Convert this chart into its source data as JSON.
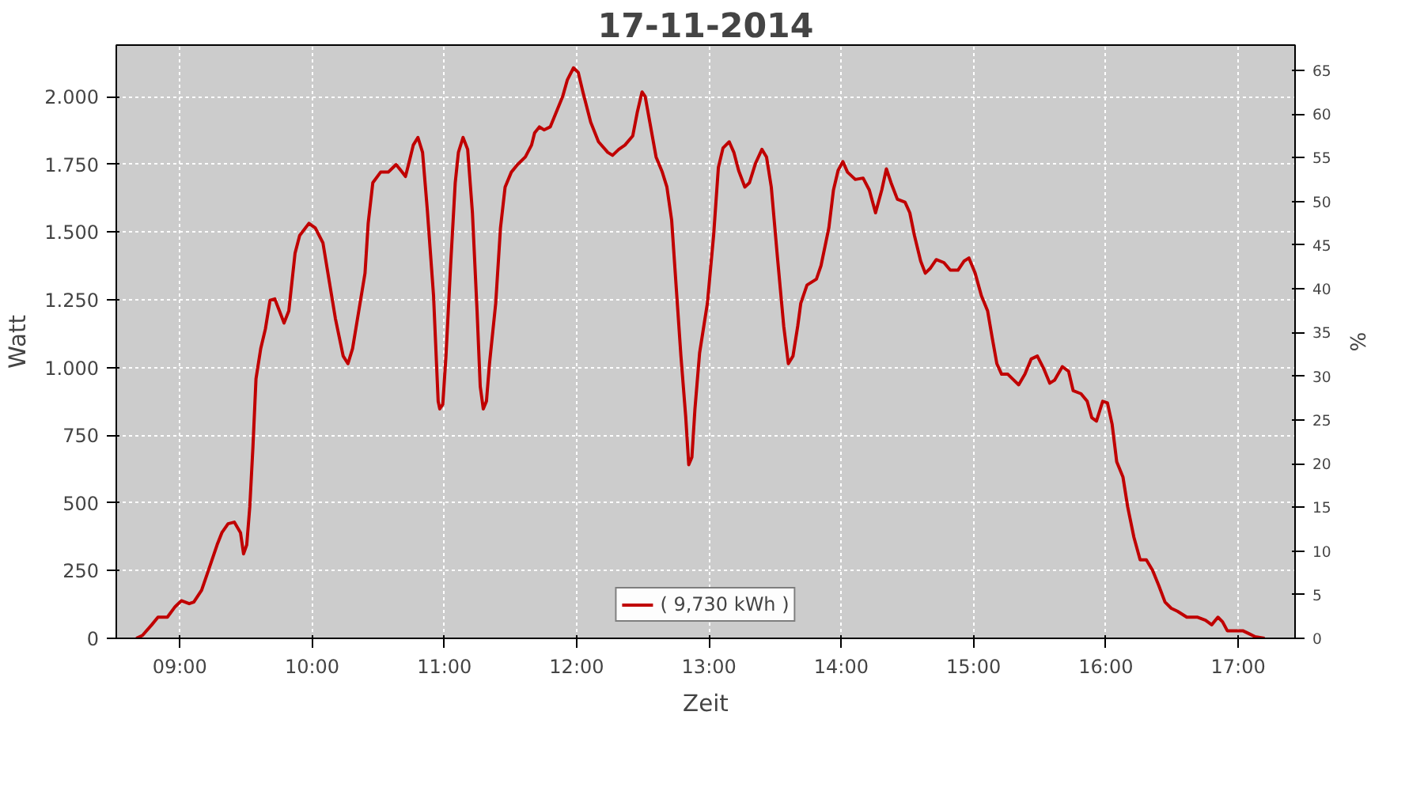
{
  "chart_data": {
    "type": "line",
    "title": "17-11-2014",
    "xlabel": "Zeit",
    "ylabel": "Watt",
    "y2label": "%",
    "xlim": [
      8.52,
      17.43
    ],
    "xticks": [
      {
        "value": 9,
        "label": "09:00"
      },
      {
        "value": 10,
        "label": "10:00"
      },
      {
        "value": 11,
        "label": "11:00"
      },
      {
        "value": 12,
        "label": "12:00"
      },
      {
        "value": 13,
        "label": "13:00"
      },
      {
        "value": 14,
        "label": "14:00"
      },
      {
        "value": 15,
        "label": "15:00"
      },
      {
        "value": 16,
        "label": "16:00"
      },
      {
        "value": 17,
        "label": "17:00"
      }
    ],
    "ylim": [
      0,
      2190
    ],
    "yticks": [
      0,
      250,
      500,
      750,
      {
        "value": 1000,
        "label": "1.000"
      },
      {
        "value": 1250,
        "label": "1.250"
      },
      {
        "value": 1500,
        "label": "1.500"
      },
      {
        "value": 1750,
        "label": "1.750"
      },
      {
        "value": 2000,
        "label": "2.000"
      }
    ],
    "y2lim": [
      0,
      67.9
    ],
    "y2ticks": [
      0,
      5,
      10,
      15,
      20,
      25,
      30,
      35,
      40,
      45,
      50,
      55,
      60,
      65
    ],
    "grid": true,
    "legend": "bottom",
    "marker": "none",
    "line_style": "solid",
    "series": [
      {
        "name": "( 9,730 kWh )",
        "color": "#c00000",
        "x": [
          8.671,
          8.718,
          8.788,
          8.835,
          8.906,
          8.965,
          9.012,
          9.071,
          9.106,
          9.165,
          9.224,
          9.282,
          9.318,
          9.365,
          9.412,
          9.459,
          9.482,
          9.506,
          9.529,
          9.553,
          9.576,
          9.612,
          9.647,
          9.682,
          9.718,
          9.753,
          9.788,
          9.824,
          9.871,
          9.906,
          9.976,
          10.024,
          10.082,
          10.129,
          10.176,
          10.235,
          10.271,
          10.306,
          10.353,
          10.4,
          10.424,
          10.459,
          10.518,
          10.576,
          10.635,
          10.671,
          10.706,
          10.729,
          10.765,
          10.8,
          10.835,
          10.871,
          10.918,
          10.953,
          10.965,
          10.988,
          11.012,
          11.047,
          11.082,
          11.106,
          11.141,
          11.176,
          11.212,
          11.247,
          11.271,
          11.294,
          11.318,
          11.341,
          11.388,
          11.424,
          11.459,
          11.506,
          11.553,
          11.612,
          11.659,
          11.682,
          11.718,
          11.753,
          11.8,
          11.847,
          11.894,
          11.929,
          11.976,
          12.012,
          12.047,
          12.106,
          12.165,
          12.235,
          12.271,
          12.318,
          12.365,
          12.424,
          12.459,
          12.494,
          12.518,
          12.553,
          12.6,
          12.647,
          12.682,
          12.718,
          12.753,
          12.788,
          12.824,
          12.847,
          12.871,
          12.894,
          12.929,
          12.988,
          13.035,
          13.071,
          13.106,
          13.153,
          13.188,
          13.224,
          13.271,
          13.306,
          13.353,
          13.4,
          13.435,
          13.471,
          13.518,
          13.565,
          13.6,
          13.635,
          13.671,
          13.694,
          13.741,
          13.812,
          13.847,
          13.906,
          13.941,
          13.976,
          14.012,
          14.047,
          14.106,
          14.165,
          14.212,
          14.259,
          14.306,
          14.341,
          14.376,
          14.424,
          14.482,
          14.518,
          14.553,
          14.6,
          14.635,
          14.671,
          14.718,
          14.776,
          14.824,
          14.882,
          14.929,
          14.965,
          15.012,
          15.059,
          15.106,
          15.141,
          15.176,
          15.212,
          15.259,
          15.294,
          15.341,
          15.388,
          15.435,
          15.482,
          15.529,
          15.576,
          15.612,
          15.671,
          15.718,
          15.753,
          15.812,
          15.859,
          15.894,
          15.929,
          15.976,
          16.012,
          16.047,
          16.082,
          16.129,
          16.165,
          16.212,
          16.259,
          16.306,
          16.353,
          16.4,
          16.447,
          16.494,
          16.541,
          16.612,
          16.694,
          16.753,
          16.8,
          16.847,
          16.882,
          16.918,
          16.988,
          17.035,
          17.082,
          17.129,
          17.2
        ],
        "values": [
          0,
          11,
          50,
          78,
          78,
          117,
          139,
          128,
          134,
          178,
          262,
          345,
          390,
          423,
          429,
          390,
          312,
          345,
          485,
          708,
          958,
          1070,
          1142,
          1248,
          1253,
          1209,
          1164,
          1209,
          1421,
          1487,
          1532,
          1515,
          1460,
          1320,
          1181,
          1042,
          1014,
          1070,
          1209,
          1348,
          1532,
          1682,
          1721,
          1721,
          1749,
          1727,
          1705,
          1749,
          1821,
          1849,
          1794,
          1582,
          1265,
          875,
          847,
          864,
          1042,
          1376,
          1682,
          1794,
          1849,
          1805,
          1571,
          1209,
          930,
          847,
          875,
          1014,
          1237,
          1515,
          1666,
          1721,
          1749,
          1777,
          1821,
          1866,
          1888,
          1877,
          1888,
          1944,
          2000,
          2061,
          2106,
          2089,
          2017,
          1905,
          1833,
          1794,
          1783,
          1805,
          1821,
          1855,
          1944,
          2017,
          2000,
          1905,
          1777,
          1721,
          1666,
          1543,
          1292,
          1042,
          819,
          641,
          669,
          847,
          1053,
          1237,
          1487,
          1738,
          1810,
          1833,
          1794,
          1727,
          1666,
          1682,
          1755,
          1805,
          1777,
          1666,
          1404,
          1153,
          1014,
          1042,
          1153,
          1237,
          1304,
          1326,
          1376,
          1515,
          1655,
          1727,
          1760,
          1721,
          1694,
          1699,
          1655,
          1571,
          1655,
          1733,
          1682,
          1621,
          1610,
          1571,
          1487,
          1393,
          1348,
          1365,
          1398,
          1387,
          1359,
          1359,
          1393,
          1404,
          1348,
          1265,
          1209,
          1109,
          1014,
          975,
          975,
          958,
          936,
          975,
          1031,
          1042,
          997,
          942,
          953,
          1003,
          986,
          914,
          903,
          875,
          814,
          802,
          875,
          869,
          791,
          652,
          596,
          485,
          373,
          290,
          290,
          251,
          195,
          134,
          111,
          100,
          78,
          78,
          67,
          50,
          78,
          61,
          28,
          28,
          28,
          17,
          6,
          0
        ]
      }
    ]
  }
}
